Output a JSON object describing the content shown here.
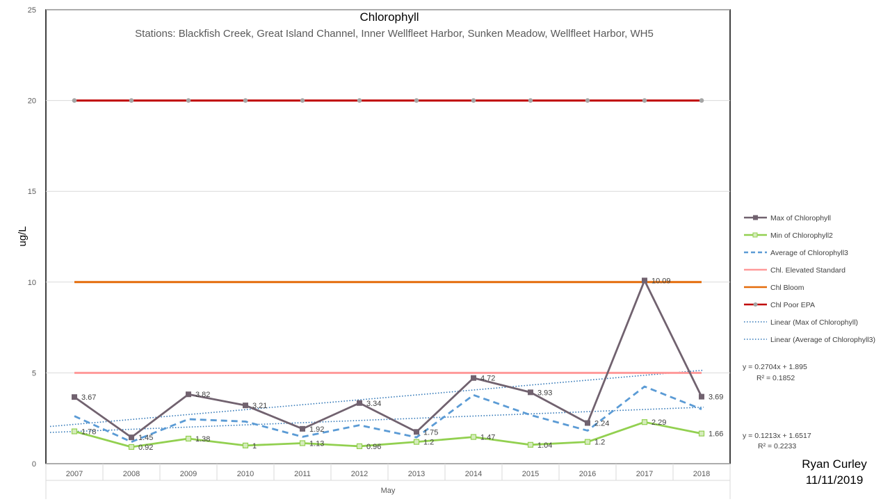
{
  "chart_data": {
    "type": "line",
    "title": "Chlorophyll",
    "subtitle": "Stations: Blackfish Creek, Great Island Channel, Inner Wellfleet Harbor, Sunken Meadow, Wellfleet Harbor, WH5",
    "xlabel": "May",
    "ylabel": "ug/L",
    "ylim": [
      0,
      25
    ],
    "yticks": [
      0,
      5,
      10,
      15,
      20,
      25
    ],
    "grid": true,
    "legend_position": "right",
    "categories": [
      "2007",
      "2008",
      "2009",
      "2010",
      "2011",
      "2012",
      "2013",
      "2014",
      "2015",
      "2016",
      "2017",
      "2018"
    ],
    "series": [
      {
        "name": "Max of Chlorophyll",
        "color": "#71626f",
        "style": "solid",
        "marker": "square",
        "values": [
          3.67,
          1.45,
          3.82,
          3.21,
          1.92,
          3.34,
          1.75,
          4.72,
          3.93,
          2.24,
          10.09,
          3.69
        ],
        "labels": [
          "3.67",
          "1.45",
          "3.82",
          "3.21",
          "1.92",
          "3.34",
          "1.75",
          "4.72",
          "3.93",
          "2.24",
          "10.09",
          "3.69"
        ]
      },
      {
        "name": "Min of Chlorophyll2",
        "color": "#92d050",
        "style": "solid",
        "marker": "square-open",
        "values": [
          1.78,
          0.92,
          1.38,
          1.0,
          1.13,
          0.96,
          1.2,
          1.47,
          1.04,
          1.2,
          2.29,
          1.66
        ],
        "labels": [
          "1.78",
          "0.92",
          "1.38",
          "1",
          "1.13",
          "0.96",
          "1.2",
          "1.47",
          "1.04",
          "1.2",
          "2.29",
          "1.66"
        ]
      },
      {
        "name": "Average of Chlorophyll3",
        "color": "#5b9bd5",
        "style": "dashed",
        "marker": "none",
        "values": [
          2.62,
          1.2,
          2.45,
          2.32,
          1.48,
          2.12,
          1.45,
          3.78,
          2.68,
          1.82,
          4.25,
          3.0
        ]
      },
      {
        "name": "Chl. Elevated Standard",
        "color": "#ff9999",
        "style": "solid",
        "marker": "none",
        "values": [
          5,
          5,
          5,
          5,
          5,
          5,
          5,
          5,
          5,
          5,
          5,
          5
        ]
      },
      {
        "name": "Chl Bloom",
        "color": "#e46c0a",
        "style": "solid",
        "marker": "none",
        "values": [
          10,
          10,
          10,
          10,
          10,
          10,
          10,
          10,
          10,
          10,
          10,
          10
        ]
      },
      {
        "name": "Chl Poor EPA",
        "color": "#c00000",
        "style": "solid",
        "marker": "circle",
        "values": [
          20,
          20,
          20,
          20,
          20,
          20,
          20,
          20,
          20,
          20,
          20,
          20
        ]
      }
    ],
    "trendlines": [
      {
        "name": "Linear (Max of Chlorophyll)",
        "color": "#2e75b6",
        "slope": 0.2704,
        "intercept": 1.895,
        "equation": "y = 0.2704x + 1.895",
        "r2": "R² = 0.1852"
      },
      {
        "name": "Linear (Average of Chlorophyll3)",
        "color": "#2e75b6",
        "slope": 0.1213,
        "intercept": 1.6517,
        "equation": "y = 0.1213x + 1.6517",
        "r2": "R² = 0.2233"
      }
    ]
  },
  "author": {
    "name": "Ryan Curley",
    "date": "11/11/2019"
  }
}
